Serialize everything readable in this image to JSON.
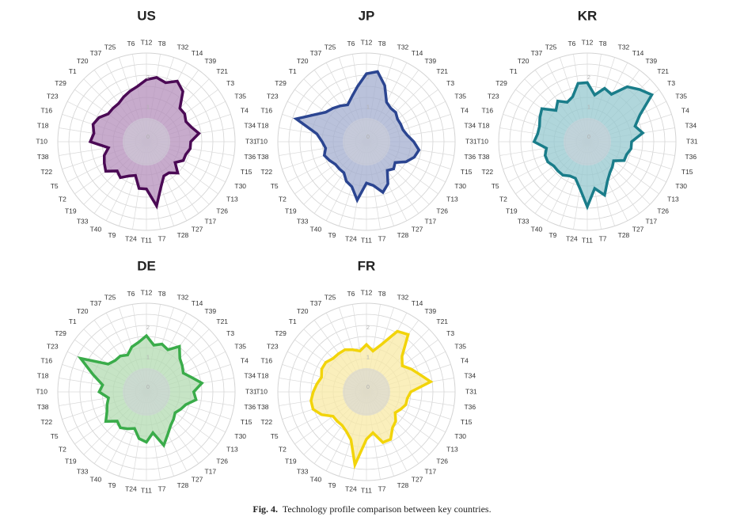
{
  "caption": {
    "label": "Fig. 4.",
    "text": "Technology profile comparison between key countries."
  },
  "chart_data": [
    {
      "type": "radar",
      "title": "US",
      "color": "#4b0a55",
      "fill": "#b48fbb",
      "rlim": [
        0,
        3
      ],
      "ring_labels": [
        "0",
        "1",
        "2"
      ],
      "categories": [
        "T12",
        "T8",
        "T32",
        "T14",
        "T39",
        "T21",
        "T3",
        "T35",
        "T4",
        "T34",
        "T31",
        "T36",
        "T15",
        "T30",
        "T13",
        "T26",
        "T17",
        "T27",
        "T28",
        "T7",
        "T11",
        "T24",
        "T9",
        "T40",
        "T33",
        "T19",
        "T2",
        "T5",
        "T22",
        "T38",
        "T10",
        "T18",
        "T16",
        "T23",
        "T29",
        "T1",
        "T20",
        "T37",
        "T25",
        "T6"
      ],
      "values": [
        2.1,
        2.2,
        2.1,
        2.3,
        2.1,
        1.6,
        1.6,
        1.5,
        1.6,
        1.8,
        1.5,
        1.5,
        1.4,
        1.4,
        1.2,
        1.5,
        1.3,
        1.3,
        1.6,
        2.2,
        1.6,
        1.6,
        1.2,
        1.3,
        1.5,
        1.4,
        1.7,
        1.6,
        1.5,
        1.3,
        1.9,
        1.8,
        1.9,
        1.8,
        1.6,
        1.6,
        1.6,
        1.7,
        1.8,
        1.9
      ]
    },
    {
      "type": "radar",
      "title": "JP",
      "color": "#2b4591",
      "fill": "#a3adcf",
      "rlim": [
        0,
        3
      ],
      "ring_labels": [
        "0",
        "1",
        "2"
      ],
      "categories": [
        "T12",
        "T8",
        "T32",
        "T14",
        "T39",
        "T21",
        "T3",
        "T35",
        "T4",
        "T34",
        "T31",
        "T36",
        "T15",
        "T30",
        "T13",
        "T26",
        "T17",
        "T27",
        "T28",
        "T7",
        "T11",
        "T24",
        "T9",
        "T40",
        "T33",
        "T19",
        "T2",
        "T5",
        "T22",
        "T38",
        "T10",
        "T18",
        "T16",
        "T23",
        "T29",
        "T1",
        "T20",
        "T37",
        "T25",
        "T6"
      ],
      "values": [
        2.3,
        2.4,
        2.0,
        1.5,
        1.4,
        1.4,
        1.3,
        1.3,
        1.3,
        1.4,
        1.6,
        1.8,
        1.7,
        1.5,
        1.2,
        1.3,
        1.2,
        1.6,
        1.8,
        1.5,
        1.4,
        2.0,
        1.6,
        1.5,
        1.3,
        1.3,
        1.3,
        1.4,
        1.5,
        1.4,
        1.5,
        1.7,
        2.5,
        2.0,
        1.7,
        1.6,
        1.5,
        1.4,
        1.6,
        1.9
      ]
    },
    {
      "type": "radar",
      "title": "KR",
      "color": "#1a7d8a",
      "fill": "#95c8cf",
      "rlim": [
        0,
        3
      ],
      "ring_labels": [
        "0",
        "1",
        "2"
      ],
      "categories": [
        "T12",
        "T8",
        "T32",
        "T14",
        "T39",
        "T21",
        "T3",
        "T35",
        "T4",
        "T34",
        "T31",
        "T36",
        "T15",
        "T30",
        "T13",
        "T26",
        "T17",
        "T27",
        "T28",
        "T7",
        "T11",
        "T24",
        "T9",
        "T40",
        "T33",
        "T19",
        "T2",
        "T5",
        "T22",
        "T38",
        "T10",
        "T18",
        "T16",
        "T23",
        "T29",
        "T1",
        "T20",
        "T37",
        "T25",
        "T6"
      ],
      "values": [
        2.0,
        1.6,
        1.9,
        1.8,
        2.3,
        2.5,
        2.7,
        2.0,
        1.7,
        1.9,
        1.5,
        1.5,
        1.4,
        1.4,
        1.1,
        1.2,
        1.3,
        1.5,
        1.9,
        1.6,
        2.2,
        1.6,
        1.3,
        1.3,
        1.4,
        1.4,
        1.4,
        1.5,
        1.5,
        1.4,
        1.8,
        1.7,
        1.7,
        1.8,
        1.9,
        1.5,
        1.7,
        1.5,
        1.6,
        2.0
      ]
    },
    {
      "type": "radar",
      "title": "DE",
      "color": "#3aac4a",
      "fill": "#b3dbb2",
      "rlim": [
        0,
        3
      ],
      "ring_labels": [
        "0",
        "1",
        "2"
      ],
      "categories": [
        "T12",
        "T8",
        "T32",
        "T14",
        "T39",
        "T21",
        "T3",
        "T35",
        "T4",
        "T34",
        "T31",
        "T36",
        "T15",
        "T30",
        "T13",
        "T26",
        "T17",
        "T27",
        "T28",
        "T7",
        "T11",
        "T24",
        "T9",
        "T40",
        "T33",
        "T19",
        "T2",
        "T5",
        "T22",
        "T38",
        "T10",
        "T18",
        "T16",
        "T23",
        "T29",
        "T1",
        "T20",
        "T37",
        "T25",
        "T6"
      ],
      "values": [
        1.9,
        1.6,
        1.7,
        1.6,
        1.9,
        1.6,
        1.5,
        1.4,
        1.6,
        1.9,
        1.6,
        1.7,
        1.4,
        1.3,
        1.2,
        1.3,
        1.4,
        1.6,
        1.9,
        1.4,
        1.7,
        1.6,
        1.3,
        1.4,
        1.5,
        1.4,
        1.7,
        1.5,
        1.4,
        1.3,
        1.6,
        1.5,
        1.9,
        2.5,
        1.6,
        1.5,
        1.5,
        1.4,
        1.6,
        1.7
      ]
    },
    {
      "type": "radar",
      "title": "FR",
      "color": "#f2d40a",
      "fill": "#f8eaa6",
      "rlim": [
        0,
        3
      ],
      "ring_labels": [
        "0",
        "1",
        "2"
      ],
      "categories": [
        "T12",
        "T8",
        "T32",
        "T14",
        "T39",
        "T21",
        "T3",
        "T35",
        "T4",
        "T34",
        "T31",
        "T36",
        "T15",
        "T30",
        "T13",
        "T26",
        "T17",
        "T27",
        "T28",
        "T7",
        "T11",
        "T24",
        "T9",
        "T40",
        "T33",
        "T19",
        "T2",
        "T5",
        "T22",
        "T38",
        "T10",
        "T18",
        "T16",
        "T23",
        "T29",
        "T1",
        "T20",
        "T37",
        "T25",
        "T6"
      ],
      "values": [
        1.6,
        1.4,
        1.7,
        2.3,
        2.4,
        1.7,
        1.5,
        1.7,
        1.9,
        2.2,
        1.5,
        1.4,
        1.4,
        1.3,
        1.2,
        1.4,
        1.5,
        1.8,
        1.8,
        1.4,
        1.6,
        2.5,
        1.7,
        1.5,
        1.4,
        1.4,
        1.4,
        1.7,
        1.9,
        1.9,
        1.8,
        1.7,
        1.6,
        1.7,
        1.7,
        1.6,
        1.6,
        1.6,
        1.5,
        1.4
      ]
    }
  ]
}
